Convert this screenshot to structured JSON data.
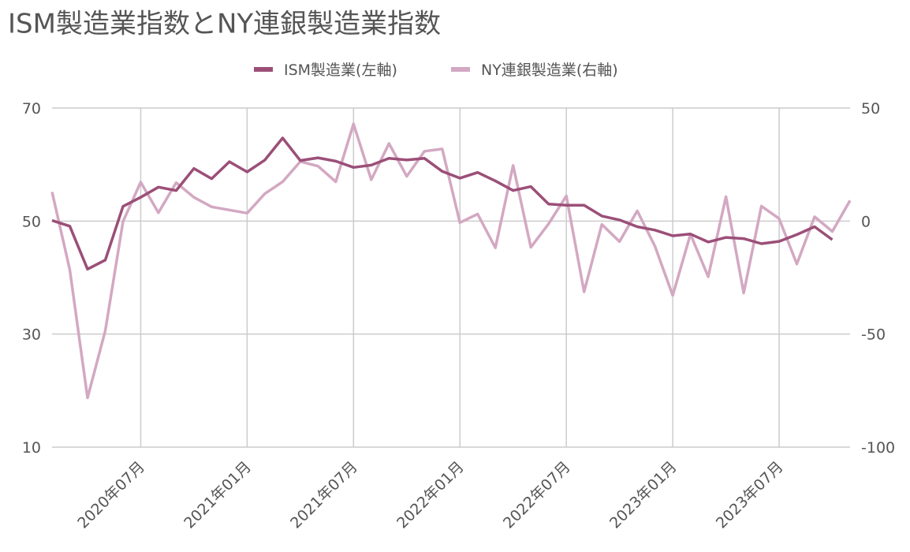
{
  "chart_data": {
    "type": "line",
    "title": "ISM製造業指数とNY連銀製造業指数",
    "categories": [
      null,
      null,
      null,
      null,
      null,
      "2020年07月",
      null,
      null,
      null,
      null,
      null,
      "2021年01月",
      null,
      null,
      null,
      null,
      null,
      "2021年07月",
      null,
      null,
      null,
      null,
      null,
      "2022年01月",
      null,
      null,
      null,
      null,
      null,
      "2022年07月",
      null,
      null,
      null,
      null,
      null,
      "2023年01月",
      null,
      null,
      null,
      null,
      null,
      "2023年07月",
      null,
      null,
      null,
      null
    ],
    "series": [
      {
        "name": "ISM製造業(左軸)",
        "color": "#9b4f78",
        "axis": "y",
        "values": [
          50.1,
          49.1,
          41.5,
          43.1,
          52.6,
          54.2,
          56.0,
          55.4,
          59.3,
          57.5,
          60.5,
          58.7,
          60.8,
          64.7,
          60.7,
          61.2,
          60.6,
          59.5,
          59.9,
          61.1,
          60.8,
          61.1,
          58.8,
          57.6,
          58.6,
          57.1,
          55.4,
          56.1,
          53.0,
          52.8,
          52.8,
          50.9,
          50.2,
          49.0,
          48.4,
          47.4,
          47.7,
          46.3,
          47.1,
          46.9,
          46.0,
          46.4,
          47.6,
          49.0,
          46.7,
          null
        ]
      },
      {
        "name": "NY連銀製造業(右軸)",
        "color": "#d3a8c2",
        "axis": "y2",
        "values": [
          12.9,
          -21.5,
          -78.2,
          -48.5,
          -0.2,
          17.2,
          3.7,
          17.0,
          10.5,
          6.3,
          4.9,
          3.5,
          12.1,
          17.4,
          26.3,
          24.3,
          17.4,
          43.0,
          18.3,
          34.3,
          19.8,
          30.9,
          31.9,
          -0.7,
          3.1,
          -11.8,
          24.6,
          -11.6,
          -1.2,
          11.1,
          -31.3,
          -1.5,
          -9.1,
          4.5,
          -11.2,
          -32.9,
          -5.8,
          -24.6,
          10.8,
          -31.8,
          6.6,
          1.1,
          -19.0,
          1.9,
          -4.6,
          9.1
        ]
      }
    ],
    "ylim": [
      10,
      70
    ],
    "yticks": [
      10,
      30,
      50,
      70
    ],
    "y2lim": [
      -100,
      50
    ],
    "y2ticks": [
      -100,
      -50,
      0,
      50
    ],
    "grid": true,
    "legend": "top"
  }
}
